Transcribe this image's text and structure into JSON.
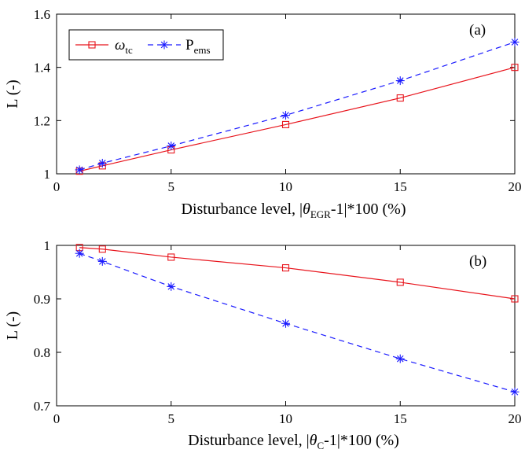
{
  "chart_data": [
    {
      "type": "line",
      "panel_label": "(a)",
      "xlabel_prefix": "Disturbance level, |",
      "xlabel_theta": "θ",
      "xlabel_sub": "EGR",
      "xlabel_suffix": "-1|*100 (%)",
      "ylabel": "L (-)",
      "xlim": [
        0,
        20
      ],
      "ylim": [
        1,
        1.6
      ],
      "xticks": [
        "0",
        "5",
        "10",
        "15",
        "20"
      ],
      "yticks": [
        "1",
        "1.2",
        "1.4",
        "1.6"
      ],
      "grid": false,
      "legend_position": "top-left",
      "x": [
        1,
        2,
        5,
        10,
        15,
        20
      ],
      "series": [
        {
          "name": "ω",
          "name_sub": "tc",
          "color": "#e8141c",
          "marker": "square",
          "line": "solid",
          "values": [
            1.01,
            1.03,
            1.09,
            1.185,
            1.285,
            1.4
          ]
        },
        {
          "name": "P",
          "name_sub": "ems",
          "color": "#1a1aff",
          "marker": "asterisk",
          "line": "dashed",
          "values": [
            1.015,
            1.04,
            1.105,
            1.22,
            1.35,
            1.495
          ]
        }
      ]
    },
    {
      "type": "line",
      "panel_label": "(b)",
      "xlabel_prefix": "Disturbance level, |",
      "xlabel_theta": "θ",
      "xlabel_sub": "C",
      "xlabel_suffix": "-1|*100 (%)",
      "ylabel": "L (-)",
      "xlim": [
        0,
        20
      ],
      "ylim": [
        0.7,
        1
      ],
      "xticks": [
        "0",
        "5",
        "10",
        "15",
        "20"
      ],
      "yticks": [
        "0.7",
        "0.8",
        "0.9",
        "1"
      ],
      "grid": false,
      "x": [
        1,
        2,
        5,
        10,
        15,
        20
      ],
      "series": [
        {
          "color": "#e8141c",
          "marker": "square",
          "line": "solid",
          "values": [
            0.996,
            0.993,
            0.978,
            0.958,
            0.931,
            0.9
          ]
        },
        {
          "color": "#1a1aff",
          "marker": "asterisk",
          "line": "dashed",
          "values": [
            0.985,
            0.97,
            0.923,
            0.854,
            0.788,
            0.726
          ]
        }
      ]
    }
  ]
}
